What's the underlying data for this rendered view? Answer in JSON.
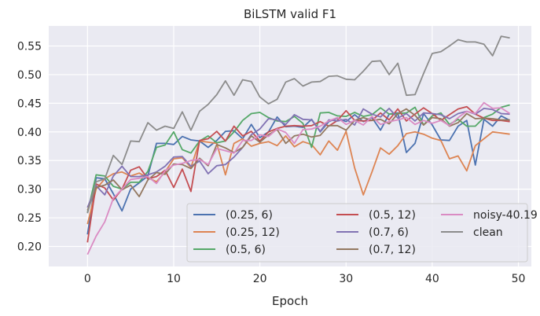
{
  "chart_data": {
    "type": "line",
    "title": "BiLSTM valid F1",
    "xlabel": "Epoch",
    "ylabel": "",
    "xlim": [
      -4.5,
      51.5
    ],
    "ylim": [
      0.165,
      0.585
    ],
    "xticks": [
      0,
      10,
      20,
      30,
      40,
      50
    ],
    "yticks": [
      0.2,
      0.25,
      0.3,
      0.35,
      0.4,
      0.45,
      0.5,
      0.55
    ],
    "grid": true,
    "legend_position": "lower-right",
    "legend_columns": 3,
    "x": [
      0,
      1,
      2,
      3,
      4,
      5,
      6,
      7,
      8,
      9,
      10,
      11,
      12,
      13,
      14,
      15,
      16,
      17,
      18,
      19,
      20,
      21,
      22,
      23,
      24,
      25,
      26,
      27,
      28,
      29,
      30,
      31,
      32,
      33,
      34,
      35,
      36,
      37,
      38,
      39,
      40,
      41,
      42,
      43,
      44,
      45,
      46,
      47,
      48,
      49
    ],
    "series": [
      {
        "name": "(0.25, 6)",
        "color": "#4c72b0",
        "values": [
          0.221,
          0.32,
          0.318,
          0.292,
          0.262,
          0.3,
          0.311,
          0.323,
          0.38,
          0.38,
          0.378,
          0.392,
          0.386,
          0.384,
          0.373,
          0.385,
          0.401,
          0.402,
          0.388,
          0.413,
          0.39,
          0.4,
          0.426,
          0.409,
          0.41,
          0.408,
          0.422,
          0.4,
          0.418,
          0.424,
          0.418,
          0.43,
          0.418,
          0.425,
          0.403,
          0.431,
          0.433,
          0.364,
          0.38,
          0.432,
          0.412,
          0.386,
          0.385,
          0.41,
          0.42,
          0.342,
          0.422,
          0.41,
          0.428,
          0.42
        ]
      },
      {
        "name": "(0.25, 12)",
        "color": "#dd8452",
        "values": [
          0.239,
          0.3,
          0.318,
          0.327,
          0.33,
          0.323,
          0.328,
          0.32,
          0.313,
          0.33,
          0.353,
          0.355,
          0.338,
          0.384,
          0.382,
          0.38,
          0.325,
          0.38,
          0.388,
          0.375,
          0.38,
          0.383,
          0.376,
          0.393,
          0.374,
          0.383,
          0.378,
          0.36,
          0.384,
          0.368,
          0.401,
          0.337,
          0.29,
          0.33,
          0.372,
          0.361,
          0.376,
          0.397,
          0.4,
          0.396,
          0.389,
          0.385,
          0.353,
          0.358,
          0.332,
          0.376,
          0.388,
          0.4,
          0.398,
          0.396
        ]
      },
      {
        "name": "(0.5, 6)",
        "color": "#55a868",
        "values": [
          0.259,
          0.325,
          0.323,
          0.305,
          0.3,
          0.312,
          0.312,
          0.331,
          0.373,
          0.377,
          0.4,
          0.369,
          0.363,
          0.384,
          0.393,
          0.381,
          0.384,
          0.4,
          0.42,
          0.432,
          0.434,
          0.425,
          0.419,
          0.418,
          0.427,
          0.415,
          0.373,
          0.433,
          0.434,
          0.428,
          0.427,
          0.434,
          0.427,
          0.43,
          0.442,
          0.431,
          0.432,
          0.433,
          0.443,
          0.412,
          0.428,
          0.433,
          0.413,
          0.422,
          0.41,
          0.41,
          0.425,
          0.431,
          0.443,
          0.447
        ]
      },
      {
        "name": "(0.5, 12)",
        "color": "#c44e52",
        "values": [
          0.207,
          0.309,
          0.302,
          0.281,
          0.3,
          0.333,
          0.339,
          0.318,
          0.322,
          0.333,
          0.303,
          0.335,
          0.296,
          0.385,
          0.388,
          0.401,
          0.384,
          0.41,
          0.393,
          0.401,
          0.384,
          0.4,
          0.406,
          0.41,
          0.411,
          0.41,
          0.411,
          0.418,
          0.41,
          0.42,
          0.437,
          0.42,
          0.419,
          0.42,
          0.433,
          0.421,
          0.44,
          0.419,
          0.431,
          0.442,
          0.432,
          0.42,
          0.43,
          0.44,
          0.444,
          0.431,
          0.424,
          0.42,
          0.42,
          0.418
        ]
      },
      {
        "name": "(0.7, 6)",
        "color": "#8172b3",
        "values": [
          0.268,
          0.306,
          0.29,
          0.323,
          0.34,
          0.322,
          0.322,
          0.325,
          0.33,
          0.34,
          0.356,
          0.357,
          0.34,
          0.349,
          0.327,
          0.341,
          0.343,
          0.356,
          0.373,
          0.395,
          0.405,
          0.423,
          0.421,
          0.413,
          0.43,
          0.422,
          0.421,
          0.401,
          0.421,
          0.419,
          0.422,
          0.412,
          0.44,
          0.431,
          0.426,
          0.441,
          0.424,
          0.432,
          0.419,
          0.433,
          0.432,
          0.43,
          0.423,
          0.432,
          0.436,
          0.431,
          0.441,
          0.439,
          0.432,
          0.431
        ]
      },
      {
        "name": "(0.7, 12)",
        "color": "#937860",
        "values": [
          0.263,
          0.303,
          0.307,
          0.316,
          0.299,
          0.307,
          0.287,
          0.316,
          0.329,
          0.326,
          0.344,
          0.343,
          0.336,
          0.354,
          0.341,
          0.378,
          0.372,
          0.364,
          0.373,
          0.393,
          0.382,
          0.395,
          0.404,
          0.38,
          0.393,
          0.396,
          0.391,
          0.394,
          0.411,
          0.411,
          0.403,
          0.42,
          0.425,
          0.42,
          0.422,
          0.414,
          0.432,
          0.44,
          0.429,
          0.412,
          0.425,
          0.423,
          0.41,
          0.416,
          0.432,
          0.423,
          0.424,
          0.423,
          0.421,
          0.421
        ]
      },
      {
        "name": "noisy-40.19",
        "color": "#da8bc3",
        "values": [
          0.186,
          0.218,
          0.243,
          0.284,
          0.3,
          0.317,
          0.319,
          0.322,
          0.31,
          0.332,
          0.342,
          0.345,
          0.35,
          0.352,
          0.343,
          0.371,
          0.367,
          0.363,
          0.385,
          0.385,
          0.395,
          0.392,
          0.405,
          0.399,
          0.38,
          0.404,
          0.405,
          0.41,
          0.419,
          0.425,
          0.413,
          0.42,
          0.412,
          0.427,
          0.413,
          0.418,
          0.421,
          0.425,
          0.413,
          0.42,
          0.415,
          0.42,
          0.411,
          0.425,
          0.436,
          0.432,
          0.451,
          0.441,
          0.442,
          0.432
        ]
      },
      {
        "name": "clean",
        "color": "#8c8c8c",
        "values": [
          0.258,
          0.313,
          0.318,
          0.359,
          0.343,
          0.384,
          0.383,
          0.416,
          0.403,
          0.41,
          0.406,
          0.435,
          0.403,
          0.436,
          0.448,
          0.465,
          0.489,
          0.464,
          0.491,
          0.488,
          0.461,
          0.449,
          0.457,
          0.487,
          0.493,
          0.48,
          0.487,
          0.488,
          0.497,
          0.498,
          0.492,
          0.491,
          0.506,
          0.523,
          0.524,
          0.5,
          0.52,
          0.464,
          0.465,
          0.502,
          0.537,
          0.54,
          0.55,
          0.561,
          0.557,
          0.557,
          0.553,
          0.533,
          0.567,
          0.564
        ]
      }
    ]
  }
}
